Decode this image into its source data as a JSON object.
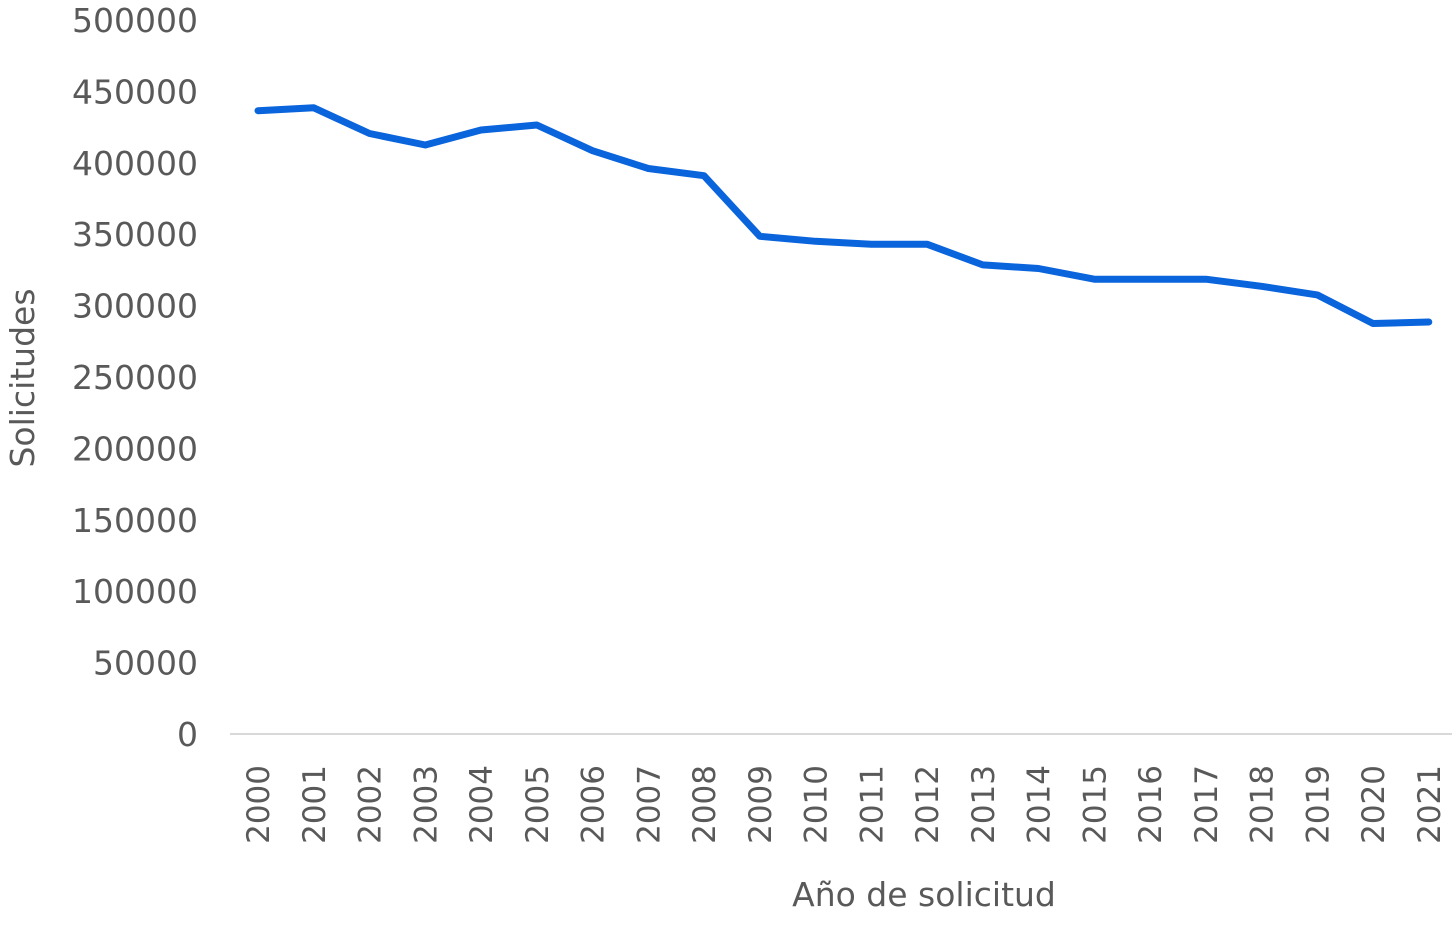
{
  "chart_data": {
    "type": "line",
    "title": "",
    "xlabel": "Año de solicitud",
    "ylabel": "Solicitudes",
    "x": [
      "2000",
      "2001",
      "2002",
      "2003",
      "2004",
      "2005",
      "2006",
      "2007",
      "2008",
      "2009",
      "2010",
      "2011",
      "2012",
      "2013",
      "2014",
      "2015",
      "2016",
      "2017",
      "2018",
      "2019",
      "2020",
      "2021"
    ],
    "series": [
      {
        "values": [
          436500,
          438500,
          420500,
          412500,
          423000,
          426500,
          408500,
          396000,
          391000,
          348500,
          345000,
          343000,
          343000,
          328500,
          326000,
          318500,
          318500,
          318500,
          313500,
          307500,
          287500,
          288500
        ]
      }
    ],
    "ylim": [
      0,
      500000
    ],
    "yticks": [
      "0",
      "50000",
      "100000",
      "150000",
      "200000",
      "250000",
      "300000",
      "350000",
      "400000",
      "450000",
      "500000"
    ],
    "grid": false,
    "legend": "none",
    "colors": {
      "line": "#0a64dc",
      "text": "#595959",
      "axis": "#d9d9d9"
    }
  }
}
